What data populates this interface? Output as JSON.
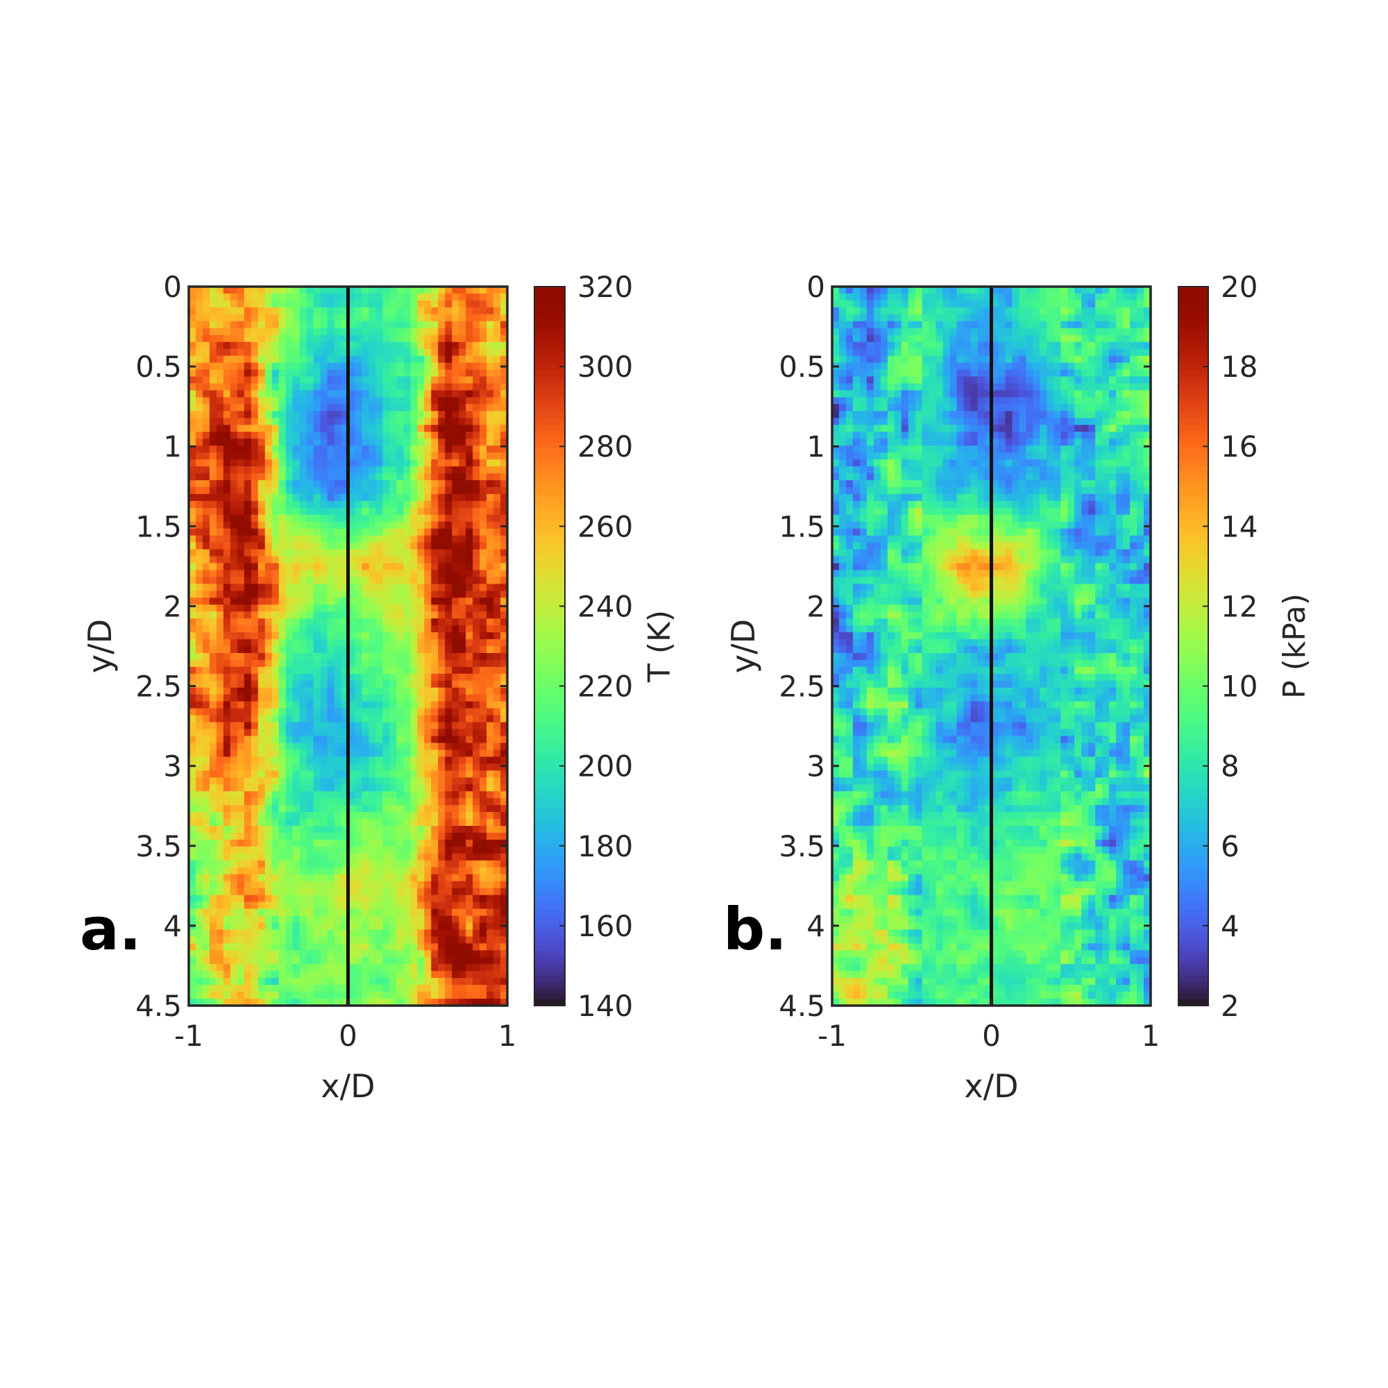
{
  "chart_data": [
    {
      "type": "heatmap",
      "panel_label": "a.",
      "xlabel": "x/D",
      "ylabel": "y/D",
      "xlim": [
        -1,
        1
      ],
      "ylim": [
        0,
        4.5
      ],
      "y_reversed": true,
      "xticks": [
        "-1",
        "0",
        "1"
      ],
      "xtick_values": [
        -1,
        0,
        1
      ],
      "yticks": [
        "0",
        "0.5",
        "1",
        "1.5",
        "2",
        "2.5",
        "3",
        "3.5",
        "4",
        "4.5"
      ],
      "ytick_values": [
        0,
        0.5,
        1,
        1.5,
        2,
        2.5,
        3,
        3.5,
        4,
        4.5
      ],
      "colorbar": {
        "label": "T (K)",
        "range": [
          140,
          320
        ],
        "ticks": [
          "140",
          "160",
          "180",
          "200",
          "220",
          "240",
          "260",
          "280",
          "300",
          "320"
        ],
        "tick_values": [
          140,
          160,
          180,
          200,
          220,
          240,
          260,
          280,
          300,
          320
        ],
        "colormap": "turbo"
      },
      "centerline_x": 0,
      "grid_x": [
        -0.875,
        -0.625,
        -0.375,
        -0.125,
        0.125,
        0.375,
        0.625,
        0.875
      ],
      "grid_y": [
        0.25,
        0.75,
        1.25,
        1.75,
        2.25,
        2.75,
        3.25,
        3.75,
        4.25
      ],
      "values_approx": [
        [
          260,
          270,
          220,
          200,
          210,
          215,
          290,
          270
        ],
        [
          270,
          285,
          190,
          160,
          175,
          200,
          310,
          280
        ],
        [
          295,
          300,
          200,
          170,
          185,
          210,
          315,
          285
        ],
        [
          270,
          310,
          250,
          240,
          255,
          255,
          315,
          290
        ],
        [
          260,
          305,
          215,
          200,
          210,
          225,
          315,
          285
        ],
        [
          270,
          300,
          200,
          180,
          195,
          215,
          310,
          285
        ],
        [
          245,
          275,
          210,
          200,
          205,
          220,
          305,
          280
        ],
        [
          230,
          265,
          230,
          235,
          250,
          240,
          300,
          290
        ],
        [
          240,
          250,
          220,
          215,
          220,
          235,
          305,
          300
        ]
      ]
    },
    {
      "type": "heatmap",
      "panel_label": "b.",
      "xlabel": "x/D",
      "ylabel": "y/D",
      "xlim": [
        -1,
        1
      ],
      "ylim": [
        0,
        4.5
      ],
      "y_reversed": true,
      "xticks": [
        "-1",
        "0",
        "1"
      ],
      "xtick_values": [
        -1,
        0,
        1
      ],
      "yticks": [
        "0",
        "0.5",
        "1",
        "1.5",
        "2",
        "2.5",
        "3",
        "3.5",
        "4",
        "4.5"
      ],
      "ytick_values": [
        0,
        0.5,
        1,
        1.5,
        2,
        2.5,
        3,
        3.5,
        4,
        4.5
      ],
      "colorbar": {
        "label": "P (kPa)",
        "range": [
          2,
          20
        ],
        "ticks": [
          "2",
          "4",
          "6",
          "8",
          "10",
          "12",
          "14",
          "16",
          "18",
          "20"
        ],
        "tick_values": [
          2,
          4,
          6,
          8,
          10,
          12,
          14,
          16,
          18,
          20
        ],
        "colormap": "turbo"
      },
      "centerline_x": 0,
      "grid_x": [
        -0.875,
        -0.625,
        -0.375,
        -0.125,
        0.125,
        0.375,
        0.625,
        0.875
      ],
      "grid_y": [
        0.25,
        0.75,
        1.25,
        1.75,
        2.25,
        2.75,
        3.25,
        3.75,
        4.25
      ],
      "values_approx": [
        [
          6,
          7,
          8,
          6,
          7,
          8,
          8,
          9
        ],
        [
          6,
          7,
          7,
          4,
          4,
          6,
          7,
          8
        ],
        [
          6,
          8,
          8,
          6,
          6,
          7,
          7,
          7
        ],
        [
          6,
          8,
          11,
          15,
          14,
          9,
          7,
          7
        ],
        [
          5,
          9,
          8,
          7,
          7,
          7,
          7,
          7
        ],
        [
          6,
          9,
          7,
          5,
          5,
          7,
          7,
          8
        ],
        [
          8,
          8,
          8,
          7,
          8,
          8,
          7,
          8
        ],
        [
          11,
          10,
          9,
          9,
          10,
          10,
          8,
          7
        ],
        [
          11,
          10,
          9,
          9,
          9,
          9,
          8,
          7
        ]
      ]
    }
  ]
}
